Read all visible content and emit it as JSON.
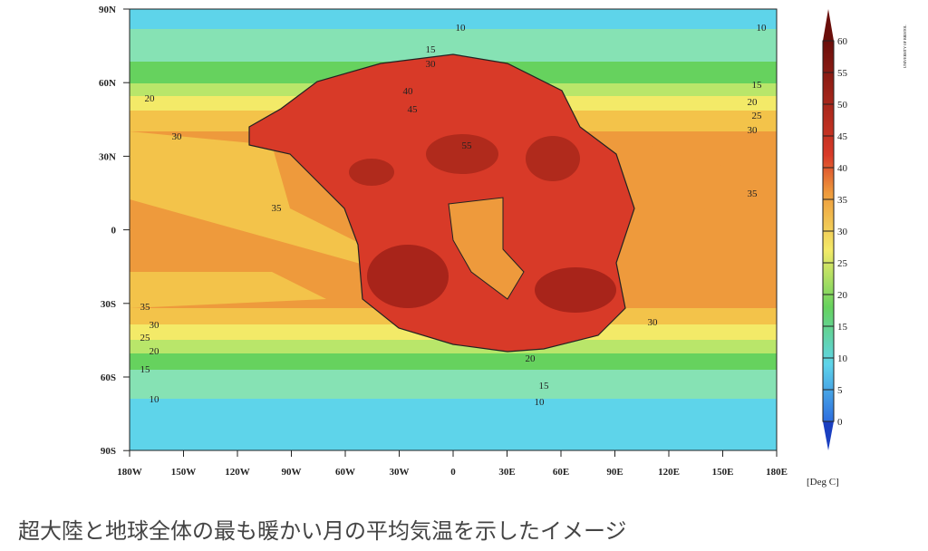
{
  "map": {
    "lat_labels": [
      "90N",
      "60N",
      "30N",
      "0",
      "30S",
      "60S",
      "90S"
    ],
    "lon_labels": [
      "180W",
      "150W",
      "120W",
      "90W",
      "60W",
      "30W",
      "0",
      "30E",
      "60E",
      "90E",
      "120E",
      "150E",
      "180E"
    ],
    "colorbar": {
      "labels": [
        0,
        5,
        10,
        15,
        20,
        25,
        30,
        35,
        40,
        45,
        50,
        55,
        60
      ],
      "unit": "[Deg C]"
    },
    "contour_labels": [
      "10",
      "10",
      "15",
      "30",
      "15",
      "20",
      "20",
      "25",
      "30",
      "30",
      "35",
      "35",
      "35",
      "30",
      "25",
      "20",
      "15",
      "10",
      "30",
      "20",
      "15",
      "10",
      "40",
      "45",
      "55"
    ],
    "credit": "UNIVERSITY OF BRISTOL"
  },
  "caption": "超大陸と地球全体の最も暖かい月の平均気温を示したイメージ"
}
